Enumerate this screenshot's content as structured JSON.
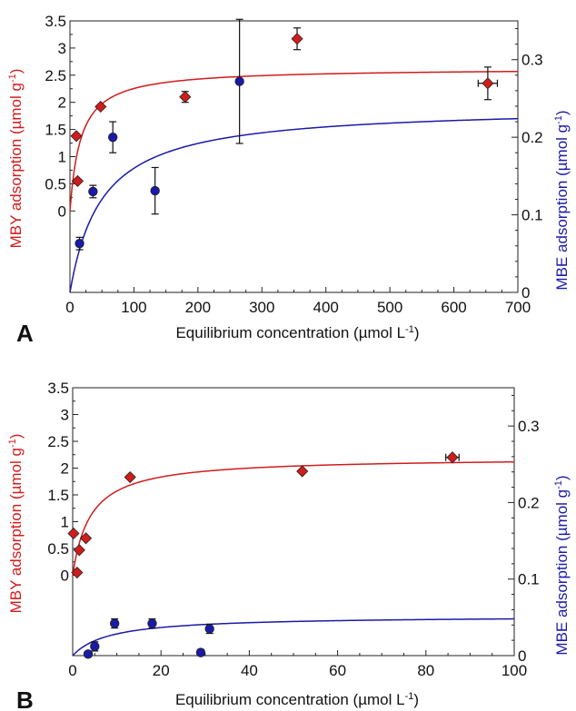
{
  "colors": {
    "mby": "#d01c1c",
    "mbe": "#1a1aa8",
    "axis": "#000000"
  },
  "chart_data": [
    {
      "panel_label": "A",
      "type": "scatter",
      "xlabel": "Equilibrium concentration (µmol L",
      "xlabel_sup": "-1",
      "xlabel_end": ")",
      "ylabel_left": "MBY adsorption (µmol g",
      "ylabel_left_sup": "-1",
      "ylabel_left_end": ")",
      "ylabel_right": "MBE adsorption (µmol g",
      "ylabel_right_sup": "-1",
      "ylabel_right_end": ")",
      "xlim": [
        0,
        700
      ],
      "xticks": [
        "0",
        "100",
        "200",
        "300",
        "400",
        "500",
        "600",
        "700"
      ],
      "ylim_left": [
        -1.5,
        3.5
      ],
      "yticks_left": [
        "0",
        "0.5",
        "1",
        "1.5",
        "2",
        "2.5",
        "3",
        "3.5"
      ],
      "ylim_right": [
        0,
        0.35
      ],
      "yticks_right": [
        "0",
        "0.1",
        "0.2",
        "0.3"
      ],
      "series": [
        {
          "name": "MBY",
          "axis": "left",
          "marker": "diamond",
          "points": [
            {
              "x": 10,
              "y": 1.38
            },
            {
              "x": 12,
              "y": 0.55
            },
            {
              "x": 48,
              "y": 1.92
            },
            {
              "x": 180,
              "y": 2.1,
              "yerr": 0.1
            },
            {
              "x": 355,
              "y": 3.17,
              "yerr": 0.2
            },
            {
              "x": 653,
              "y": 2.35,
              "yerr": 0.3,
              "xerr": 15
            }
          ],
          "fit": {
            "model": "langmuir",
            "qmax": 2.63,
            "K": 0.06
          }
        },
        {
          "name": "MBE",
          "axis": "right",
          "marker": "circle",
          "points": [
            {
              "x": 15,
              "y": 0.063,
              "yerr": 0.008
            },
            {
              "x": 36,
              "y": 0.13,
              "yerr": 0.008
            },
            {
              "x": 67,
              "y": 0.2,
              "yerr": 0.02
            },
            {
              "x": 133,
              "y": 0.131,
              "yerr": 0.03
            },
            {
              "x": 265,
              "y": 0.272,
              "yerr": 0.08
            }
          ],
          "fit": {
            "model": "langmuir",
            "qmax": 0.24,
            "K": 0.02
          }
        }
      ]
    },
    {
      "panel_label": "B",
      "type": "scatter",
      "xlabel": "Equilibrium concentration (µmol L",
      "xlabel_sup": "-1",
      "xlabel_end": ")",
      "ylabel_left": "MBY adsorption (µmol g",
      "ylabel_left_sup": "-1",
      "ylabel_left_end": ")",
      "ylabel_right": "MBE adsorption (µmol g",
      "ylabel_right_sup": "-1",
      "ylabel_right_end": ")",
      "xlim": [
        0,
        100
      ],
      "xticks": [
        "0",
        "20",
        "40",
        "60",
        "80",
        "100"
      ],
      "ylim_left": [
        -1.5,
        3.5
      ],
      "yticks_left": [
        "0",
        "0.5",
        "1",
        "1.5",
        "2",
        "2.5",
        "3",
        "3.5"
      ],
      "ylim_right": [
        0,
        0.35
      ],
      "yticks_right": [
        "0",
        "0.1",
        "0.2",
        "0.3"
      ],
      "series": [
        {
          "name": "MBY",
          "axis": "left",
          "marker": "diamond",
          "points": [
            {
              "x": 0.2,
              "y": 0.78
            },
            {
              "x": 1,
              "y": 0.05
            },
            {
              "x": 1.5,
              "y": 0.47
            },
            {
              "x": 3,
              "y": 0.69
            },
            {
              "x": 13,
              "y": 1.83
            },
            {
              "x": 52,
              "y": 1.94
            },
            {
              "x": 86,
              "y": 2.2,
              "xerr": 1.5
            }
          ],
          "fit": {
            "model": "langmuir",
            "qmax": 2.2,
            "K": 0.25
          }
        },
        {
          "name": "MBE",
          "axis": "right",
          "marker": "circle",
          "points": [
            {
              "x": 3.5,
              "y": 0.002
            },
            {
              "x": 5,
              "y": 0.012,
              "yerr": 0.006
            },
            {
              "x": 9.5,
              "y": 0.042,
              "yerr": 0.006
            },
            {
              "x": 18,
              "y": 0.042,
              "yerr": 0.006
            },
            {
              "x": 29,
              "y": 0.004,
              "yerr": 0.004
            },
            {
              "x": 31,
              "y": 0.035,
              "yerr": 0.006
            }
          ],
          "fit": {
            "model": "langmuir",
            "qmax": 0.052,
            "K": 0.12
          }
        }
      ]
    }
  ]
}
